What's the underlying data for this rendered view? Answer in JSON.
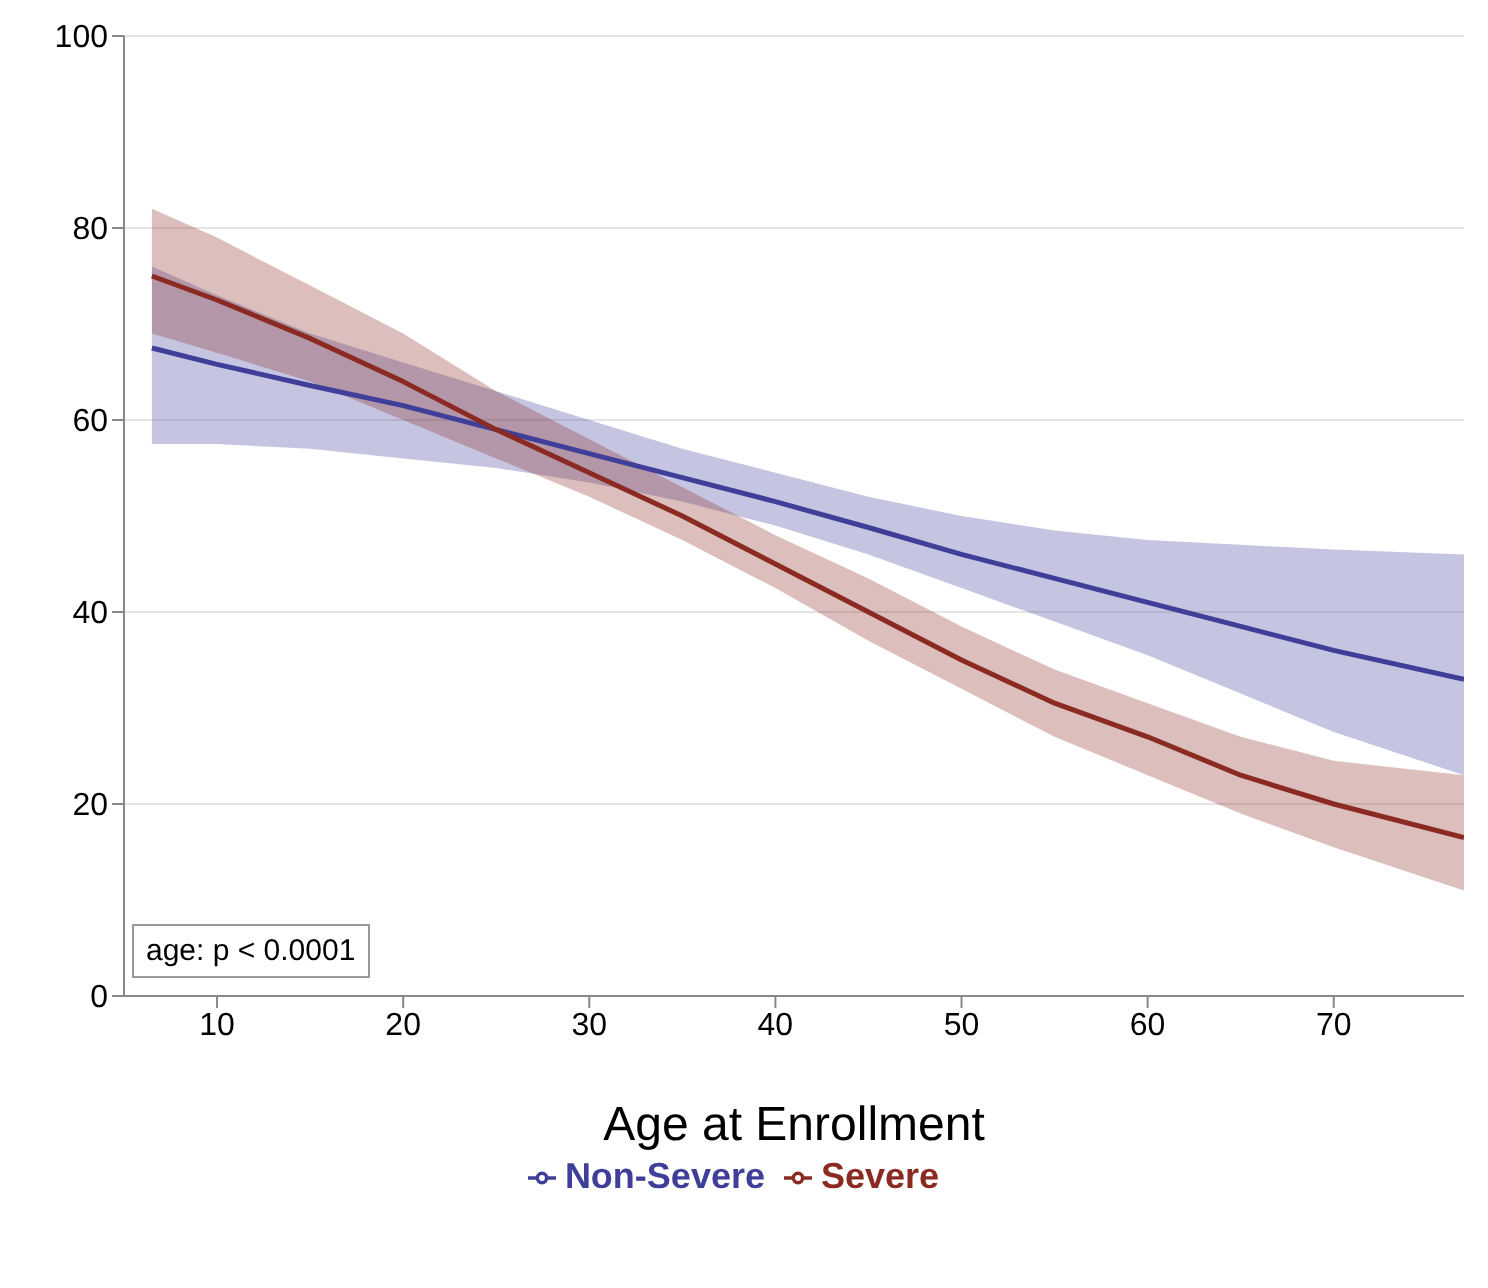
{
  "chart_data": {
    "type": "line",
    "xlabel": "Age at Enrollment",
    "x": [
      6.5,
      10,
      15,
      20,
      25,
      30,
      35,
      40,
      45,
      50,
      55,
      60,
      65,
      70,
      77
    ],
    "series": [
      {
        "name": "Non-Severe",
        "color": "#3f3f9a",
        "values": [
          67.5,
          65.8,
          63.6,
          61.5,
          59,
          56.5,
          54,
          51.5,
          48.8,
          46,
          43.5,
          41,
          38.5,
          36,
          33
        ],
        "lower": [
          57.5,
          57.5,
          57,
          56,
          55,
          53.5,
          51.5,
          49,
          46,
          42.5,
          39,
          35.5,
          31.5,
          27.5,
          23
        ],
        "upper": [
          76,
          73,
          69,
          66,
          63,
          60,
          57,
          54.5,
          52,
          50,
          48.5,
          47.5,
          47,
          46.5,
          46
        ]
      },
      {
        "name": "Severe",
        "color": "#8b2a22",
        "values": [
          75,
          72.5,
          68.5,
          64,
          59,
          54.5,
          50,
          45,
          40,
          35,
          30.5,
          27,
          23,
          20,
          16.5
        ],
        "lower": [
          69,
          67,
          64,
          60,
          56,
          52,
          47.5,
          42.5,
          37,
          32,
          27,
          23,
          19,
          15.5,
          11
        ],
        "upper": [
          82,
          79,
          74,
          69,
          63,
          58,
          53,
          48,
          43.5,
          38.5,
          34,
          30.5,
          27,
          24.5,
          23
        ]
      }
    ],
    "xlim": [
      5,
      77
    ],
    "xticks": [
      10,
      20,
      30,
      40,
      50,
      60,
      70
    ],
    "ylim": [
      0,
      100
    ],
    "yticks": [
      0,
      20,
      40,
      60,
      80,
      100
    ],
    "grid": "y",
    "legend": "bottom",
    "annotations": [
      "age: p < 0.0001"
    ]
  }
}
